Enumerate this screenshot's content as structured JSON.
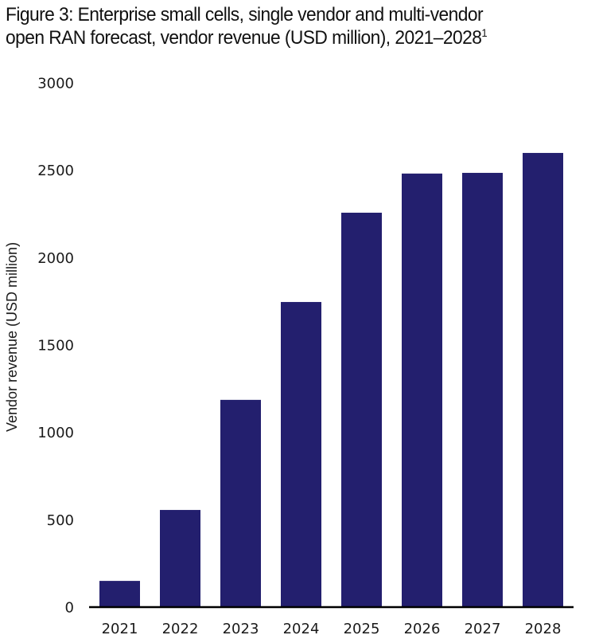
{
  "chart_data": {
    "type": "bar",
    "title": "Figure 3: Enterprise small cells, single vendor and multi-vendor open RAN forecast, vendor revenue (USD million), 2021–2028",
    "title_line1": "Figure 3: Enterprise small cells, single vendor and multi-vendor",
    "title_line2": "open RAN forecast, vendor revenue (USD million), 2021–2028",
    "title_footnote": "1",
    "xlabel": "",
    "ylabel": "Vendor revenue (USD million)",
    "categories": [
      "2021",
      "2022",
      "2023",
      "2024",
      "2025",
      "2026",
      "2027",
      "2028"
    ],
    "values": [
      150,
      556,
      1186,
      1746,
      2257,
      2481,
      2485,
      2599
    ],
    "ylim": [
      0,
      3000
    ],
    "yticks": [
      0,
      500,
      1000,
      1500,
      2000,
      2500,
      3000
    ],
    "ytick_labels": [
      "0",
      "500",
      "1000",
      "1500",
      "2000",
      "2500",
      "3000"
    ],
    "grid": false,
    "legend": "none",
    "bar_color": "#231F6E",
    "axis_color": "#000000"
  }
}
